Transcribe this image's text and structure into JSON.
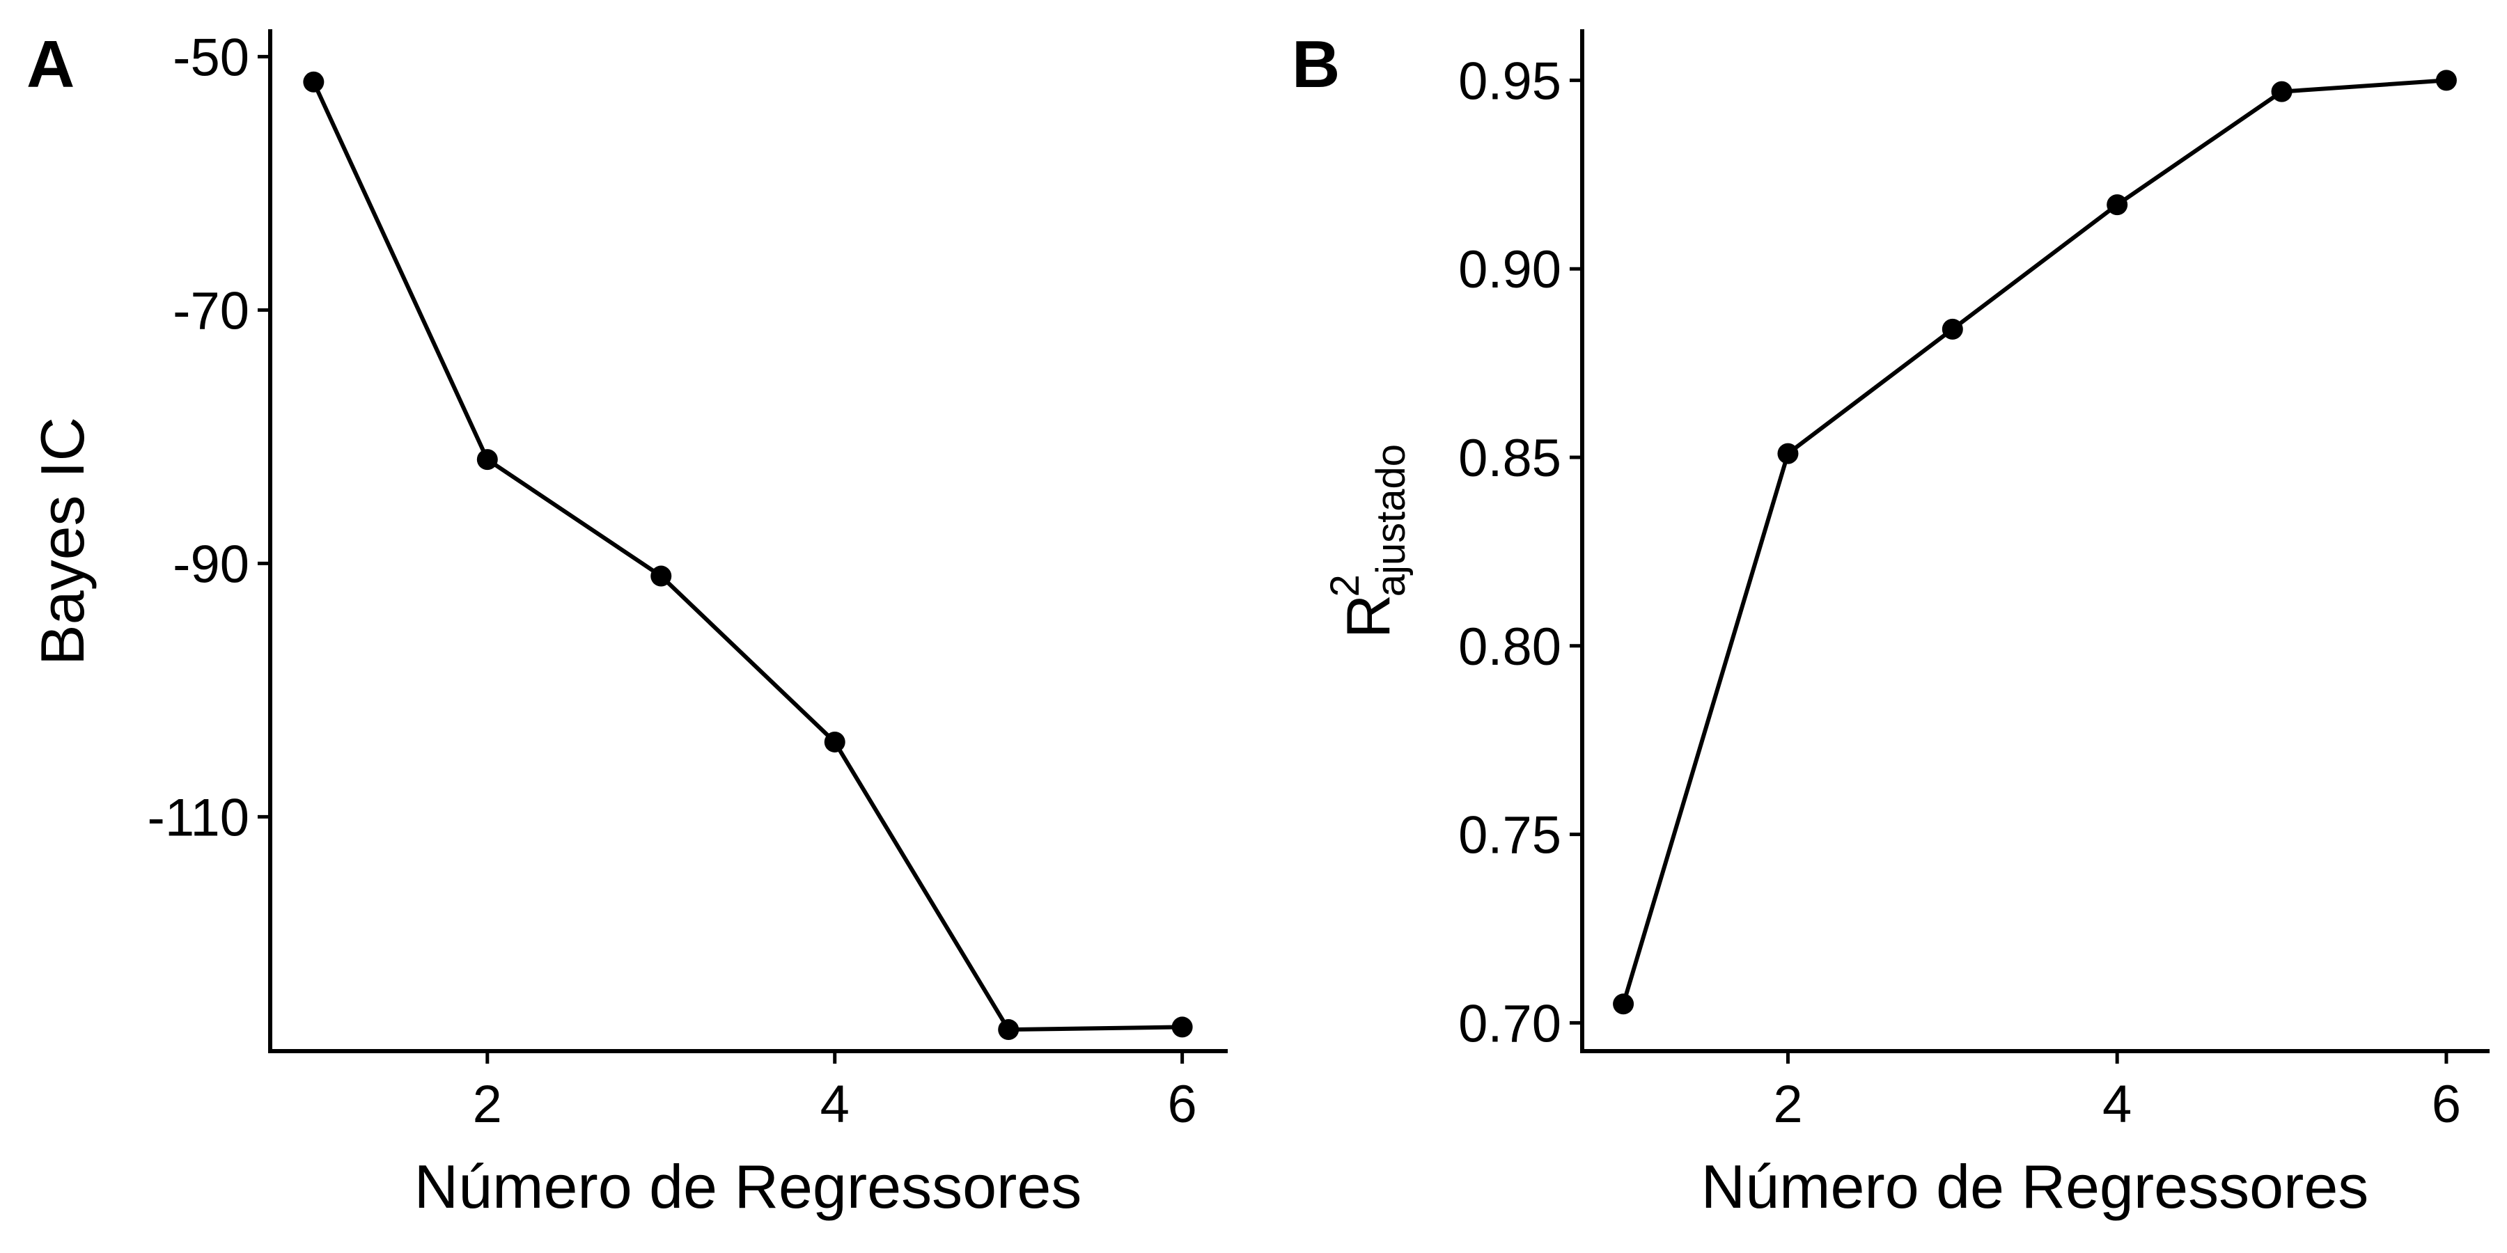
{
  "chart_data": [
    {
      "type": "line",
      "panel_label": "A",
      "xlabel": "Número de Regressores",
      "ylabel": "Bayes IC",
      "x": [
        1,
        2,
        3,
        4,
        5,
        6
      ],
      "y": [
        -52,
        -81.8,
        -91,
        -104.1,
        -126.8,
        -126.6
      ],
      "xlim": [
        0.75,
        6.25
      ],
      "ylim": [
        -128.5,
        -48
      ],
      "xticks": [
        2,
        4,
        6
      ],
      "xtick_labels": [
        "2",
        "4",
        "6"
      ],
      "yticks": [
        -50,
        -70,
        -90,
        -110
      ],
      "ytick_labels": [
        "-50",
        "-70",
        "-90",
        "-110"
      ],
      "grid": false,
      "legend": "none",
      "color": "#000000"
    },
    {
      "type": "line",
      "panel_label": "B",
      "xlabel": "Número de Regressores",
      "ylabel": "R",
      "ylabel_superscript": "2",
      "ylabel_subscript": "ajustado",
      "x": [
        1,
        2,
        3,
        4,
        5,
        6
      ],
      "y": [
        0.705,
        0.851,
        0.884,
        0.917,
        0.947,
        0.95
      ],
      "xlim": [
        0.75,
        6.25
      ],
      "ylim": [
        0.6925,
        0.963
      ],
      "xticks": [
        2,
        4,
        6
      ],
      "xtick_labels": [
        "2",
        "4",
        "6"
      ],
      "yticks": [
        0.7,
        0.75,
        0.8,
        0.85,
        0.9,
        0.95
      ],
      "ytick_labels": [
        "0.70",
        "0.75",
        "0.80",
        "0.85",
        "0.90",
        "0.95"
      ],
      "grid": false,
      "legend": "none",
      "color": "#000000"
    }
  ]
}
